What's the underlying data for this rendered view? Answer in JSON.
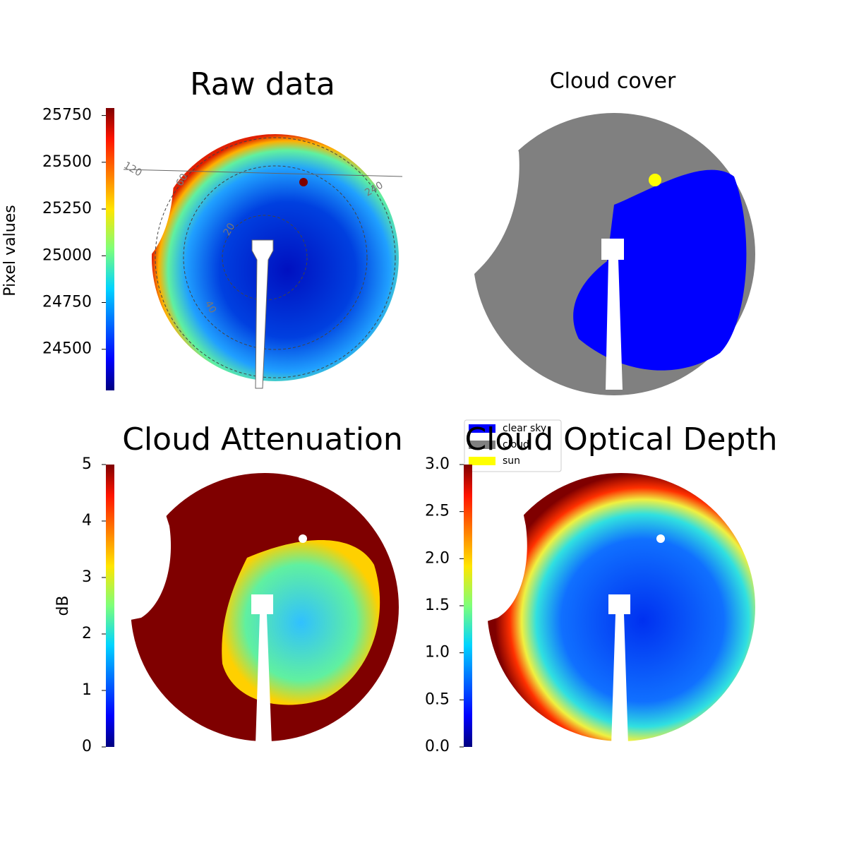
{
  "chart_data": [
    {
      "type": "image",
      "title": "Raw data",
      "colorbar": {
        "label": "Pixel values",
        "colormap": "jet",
        "lim": [
          24280,
          25790
        ],
        "ticks": [
          24500,
          24750,
          25000,
          25250,
          25500,
          25750
        ]
      },
      "annotations": [
        "120",
        "60",
        "20",
        "40",
        "240"
      ]
    },
    {
      "type": "image",
      "title": "Cloud cover",
      "legend": [
        {
          "name": "clear sky",
          "color": "#0000ff"
        },
        {
          "name": "cloud",
          "color": "#808080"
        },
        {
          "name": "sun",
          "color": "#ffff00"
        }
      ]
    },
    {
      "type": "image",
      "title": "Cloud Attenuation",
      "colorbar": {
        "label": "dB",
        "colormap": "jet",
        "lim": [
          0,
          5
        ],
        "ticks": [
          0,
          1,
          2,
          3,
          4,
          5
        ]
      }
    },
    {
      "type": "image",
      "title": "Cloud Optical Depth",
      "colorbar": {
        "colormap": "jet",
        "lim": [
          0,
          3
        ],
        "ticks": [
          {
            "value": 0,
            "label": "0.0"
          },
          {
            "value": 0.5,
            "label": "0.5"
          },
          {
            "value": 1,
            "label": "1.0"
          },
          {
            "value": 1.5,
            "label": "1.5"
          },
          {
            "value": 2,
            "label": "2.0"
          },
          {
            "value": 2.5,
            "label": "2.5"
          },
          {
            "value": 3,
            "label": "3.0"
          }
        ]
      }
    }
  ]
}
